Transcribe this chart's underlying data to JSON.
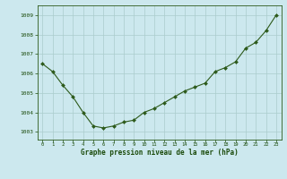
{
  "x": [
    0,
    1,
    2,
    3,
    4,
    5,
    6,
    7,
    8,
    9,
    10,
    11,
    12,
    13,
    14,
    15,
    16,
    17,
    18,
    19,
    20,
    21,
    22,
    23
  ],
  "y": [
    1006.5,
    1006.1,
    1005.4,
    1004.8,
    1004.0,
    1003.3,
    1003.2,
    1003.3,
    1003.5,
    1003.6,
    1004.0,
    1004.2,
    1004.5,
    1004.8,
    1005.1,
    1005.3,
    1005.5,
    1006.1,
    1006.3,
    1006.6,
    1007.3,
    1007.6,
    1008.2,
    1009.0
  ],
  "line_color": "#2d5a1b",
  "marker_color": "#2d5a1b",
  "bg_color": "#cce8ee",
  "grid_color": "#aacccc",
  "title": "Graphe pression niveau de la mer (hPa)",
  "title_color": "#1a4a0a",
  "yticks": [
    1003,
    1004,
    1005,
    1006,
    1007,
    1008,
    1009
  ],
  "xtick_labels": [
    "0",
    "1",
    "2",
    "3",
    "4",
    "5",
    "6",
    "7",
    "8",
    "9",
    "10",
    "11",
    "12",
    "13",
    "14",
    "15",
    "16",
    "17",
    "18",
    "19",
    "20",
    "21",
    "22",
    "23"
  ],
  "ylim": [
    1002.6,
    1009.5
  ],
  "xlim": [
    -0.5,
    23.5
  ],
  "figwidth": 3.2,
  "figheight": 2.0,
  "dpi": 100
}
